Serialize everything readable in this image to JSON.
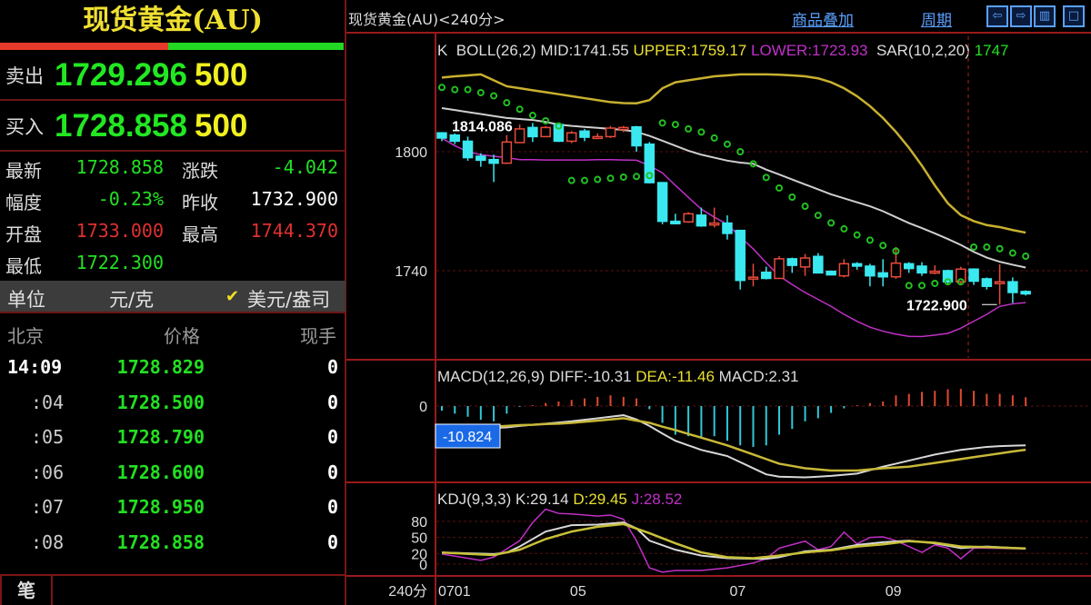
{
  "quote": {
    "title": "现货黄金(AU)",
    "sell": {
      "label": "卖出",
      "price": "1729.296",
      "volume": "500"
    },
    "buy": {
      "label": "买入",
      "price": "1728.858",
      "volume": "500"
    },
    "buy_sell_ratio": 0.49,
    "info": [
      {
        "label": "最新",
        "value": "1728.858",
        "color": "#22e022",
        "label2": "涨跌",
        "value2": "-4.042",
        "color2": "#22e022"
      },
      {
        "label": "幅度",
        "value": "-0.23%",
        "color": "#22e022",
        "label2": "昨收",
        "value2": "1732.900",
        "color2": "#ffffff"
      },
      {
        "label": "开盘",
        "value": "1733.000",
        "color": "#e03030",
        "label2": "最高",
        "value2": "1744.370",
        "color2": "#e03030"
      },
      {
        "label": "最低",
        "value": "1722.300",
        "color": "#22e022"
      }
    ],
    "units": {
      "label": "单位",
      "option1": "元/克",
      "option2": "美元/盎司",
      "selected": "美元/盎司"
    },
    "ticks_header": {
      "time": "北京",
      "price": "价格",
      "volume": "现手"
    },
    "ticks": [
      {
        "time": "14:09",
        "price": "1728.829",
        "volume": "0"
      },
      {
        "time": ":04",
        "price": "1728.500",
        "volume": "0"
      },
      {
        "time": ":05",
        "price": "1728.790",
        "volume": "0"
      },
      {
        "time": ":06",
        "price": "1728.600",
        "volume": "0"
      },
      {
        "time": ":07",
        "price": "1728.950",
        "volume": "0"
      },
      {
        "time": ":08",
        "price": "1728.858",
        "volume": "0"
      }
    ],
    "tab": "笔"
  },
  "chart_header": {
    "title": "现货黄金(AU)<240分>",
    "overlay_link": "商品叠加",
    "period_link": "周期",
    "buttons": [
      "⇦",
      "⇨",
      "▥",
      "□"
    ]
  },
  "chart_data": [
    {
      "type": "candlestick",
      "legend": {
        "k": "K",
        "boll": "BOLL(26,2)",
        "mid": "MID:1741.55",
        "upper": "UPPER:1759.17",
        "lower": "LOWER:1723.93",
        "sar": "SAR(10,2,20)",
        "sar_value": "1747"
      },
      "y_ticks": [
        {
          "label": "1800",
          "value": 1800
        },
        {
          "label": "1740",
          "value": 1740
        }
      ],
      "annotations": [
        {
          "label": "1814.086",
          "value": 1814.086,
          "index": 9
        },
        {
          "label": "1722.900",
          "value": 1722.9,
          "index": 43
        }
      ],
      "colors": {
        "up": "#e84a3a",
        "down": "#3ae8f0",
        "upper": "#c8b030",
        "mid": "#cfcfcf",
        "lower": "#c030c8",
        "sar": "#22c022"
      },
      "ohlc": [
        [
          1809.5,
          1809.9,
          1805.3,
          1806.9
        ],
        [
          1808.4,
          1809.2,
          1803.8,
          1805.3
        ],
        [
          1805.3,
          1807.6,
          1795.4,
          1797
        ],
        [
          1797.7,
          1799.2,
          1792.4,
          1795.7
        ],
        [
          1796,
          1798.5,
          1784.7,
          1794.2
        ],
        [
          1794.2,
          1808.4,
          1793.9,
          1804.9
        ],
        [
          1804.6,
          1813.7,
          1804.3,
          1811.5
        ],
        [
          1812.2,
          1814.5,
          1804.9,
          1807.6
        ],
        [
          1807.6,
          1813,
          1807.3,
          1812.2
        ],
        [
          1813.7,
          1814.1,
          1804.9,
          1805.3
        ],
        [
          1805.3,
          1810.4,
          1804.3,
          1809.5
        ],
        [
          1810.4,
          1811.5,
          1805.3,
          1807.3
        ],
        [
          1807.3,
          1809.2,
          1806.4,
          1807.6
        ],
        [
          1807.6,
          1813,
          1806.9,
          1811.9
        ],
        [
          1811.2,
          1813,
          1809.9,
          1812.2
        ],
        [
          1812.5,
          1813,
          1800,
          1803
        ],
        [
          1803.8,
          1804.9,
          1784,
          1784.4
        ],
        [
          1784.4,
          1784.7,
          1763.4,
          1764.9
        ],
        [
          1764.9,
          1768.7,
          1763.4,
          1763.7
        ],
        [
          1764.6,
          1769.5,
          1764.1,
          1768.7
        ],
        [
          1768,
          1771.8,
          1762.1,
          1762.6
        ],
        [
          1763.7,
          1771.8,
          1761.8,
          1764
        ],
        [
          1764,
          1767.9,
          1755.7,
          1758.8
        ],
        [
          1760.3,
          1760.6,
          1730.5,
          1735.1
        ],
        [
          1736.1,
          1743.5,
          1732.1,
          1736.7
        ],
        [
          1739.2,
          1742,
          1735.6,
          1736.1
        ],
        [
          1736.1,
          1747.3,
          1736.2,
          1746
        ],
        [
          1746,
          1746.6,
          1738.9,
          1742.7
        ],
        [
          1741.9,
          1748.4,
          1737.4,
          1746.4
        ],
        [
          1747.2,
          1748.9,
          1738.6,
          1738.9
        ],
        [
          1739.7,
          1740,
          1737.7,
          1737.9
        ],
        [
          1737.4,
          1745.8,
          1736.6,
          1743.5
        ],
        [
          1743.5,
          1744.3,
          1740.5,
          1742.3
        ],
        [
          1742.3,
          1743.5,
          1732.1,
          1737.4
        ],
        [
          1738.9,
          1745.8,
          1732.1,
          1736.9
        ],
        [
          1736.9,
          1751.9,
          1735.9,
          1743.8
        ],
        [
          1743.5,
          1744.3,
          1738.9,
          1741.1
        ],
        [
          1742.3,
          1744.3,
          1737.4,
          1738.9
        ],
        [
          1739,
          1742.7,
          1738.2,
          1739.7
        ],
        [
          1740,
          1740.5,
          1732.8,
          1734.4
        ],
        [
          1734.4,
          1742,
          1732.8,
          1740.8
        ],
        [
          1740.8,
          1741.2,
          1732.8,
          1734.7
        ],
        [
          1735.9,
          1736.6,
          1730.5,
          1732.1
        ],
        [
          1734,
          1743.2,
          1722.9,
          1734.4
        ],
        [
          1734.4,
          1736.6,
          1723.7,
          1729
        ],
        [
          1729.5,
          1730.1,
          1727.5,
          1728.3
        ]
      ],
      "upper": [
        1837.4,
        1838,
        1838.5,
        1839,
        1836,
        1833,
        1832,
        1831,
        1830,
        1829,
        1828,
        1827,
        1826,
        1825,
        1824.5,
        1824.4,
        1826,
        1832,
        1835,
        1836,
        1837,
        1838,
        1838.5,
        1839,
        1839,
        1839,
        1838.8,
        1838.5,
        1838,
        1837,
        1835,
        1832,
        1828,
        1823,
        1817,
        1810,
        1802,
        1793,
        1783,
        1774,
        1768,
        1765,
        1763,
        1762,
        1760.5,
        1759.2
      ],
      "mid": [
        1822,
        1821,
        1820,
        1819,
        1818,
        1817,
        1816.5,
        1816,
        1815,
        1813.7,
        1813,
        1812.5,
        1812,
        1811.5,
        1811,
        1810,
        1808,
        1805.5,
        1803,
        1800.5,
        1798.5,
        1797,
        1795.5,
        1794.5,
        1793.9,
        1791,
        1788.5,
        1786,
        1783.5,
        1781,
        1778.5,
        1776.5,
        1774.5,
        1772.5,
        1770,
        1767,
        1764,
        1761.5,
        1758.8,
        1756,
        1753,
        1749.5,
        1746.6,
        1744.5,
        1743,
        1741.6
      ],
      "lower": [
        1806.9,
        1803,
        1800,
        1798.5,
        1797.7,
        1797,
        1796,
        1796,
        1795.8,
        1795.8,
        1795.8,
        1795.8,
        1796,
        1796,
        1795.8,
        1795.7,
        1793,
        1789.3,
        1783,
        1777,
        1771,
        1767,
        1763.4,
        1757,
        1751,
        1744,
        1737.4,
        1733,
        1729,
        1725.5,
        1722,
        1718,
        1714.5,
        1711.5,
        1709.5,
        1708,
        1706.9,
        1706.8,
        1707.5,
        1708.4,
        1711,
        1714.5,
        1718,
        1722,
        1723.3,
        1723.9
      ],
      "sar": [
        1832.4,
        1831.3,
        1831.3,
        1829.8,
        1828.2,
        1824.7,
        1821.4,
        1818.3,
        1815.6,
        1813,
        1785.5,
        1785.5,
        1786,
        1786.6,
        1787.2,
        1787.5,
        1788,
        1814.5,
        1813.7,
        1811.5,
        1809.9,
        1806.9,
        1803.8,
        1800,
        1793.9,
        1787,
        1781.7,
        1777.1,
        1772.5,
        1767.9,
        1764.1,
        1761.1,
        1758,
        1755.4,
        1752.7,
        1749.9,
        1732.5,
        1732.5,
        1733.6,
        1734.4,
        1734.4,
        1751.9,
        1751.9,
        1751.1,
        1748.9,
        1747.3
      ],
      "x_ticks": [
        {
          "label": "0701",
          "index": 0
        },
        {
          "label": "05",
          "index": 10.5
        },
        {
          "label": "07",
          "index": 22.8
        },
        {
          "label": "09",
          "index": 34.8
        }
      ],
      "period_label": "240分"
    },
    {
      "type": "macd",
      "legend": {
        "name": "MACD(12,26,9)",
        "diff": "DIFF:-10.31",
        "dea": "DEA:-11.46",
        "macd": "MACD:2.31"
      },
      "y_ticks": [
        {
          "label": "0",
          "value": 0
        }
      ],
      "cursor_value": "-10.824",
      "colors": {
        "diff": "#d8d8d8",
        "dea": "#c8b838",
        "pos": "#e04a30",
        "neg": "#30c8d8"
      },
      "hist": [
        -1.2,
        -2,
        -2.8,
        -3.6,
        -4,
        -2,
        -0.2,
        0.2,
        0.8,
        1.2,
        1.6,
        2,
        2.4,
        2.8,
        2.4,
        2,
        -0.8,
        -4.4,
        -7.5,
        -7.9,
        -8.3,
        -7.9,
        -9.1,
        -10.3,
        -10.7,
        -10.3,
        -7.5,
        -6,
        -4,
        -3.2,
        -1.8,
        -0.6,
        0.2,
        0.8,
        1.2,
        2.8,
        3.2,
        3.7,
        4,
        4.4,
        4.5,
        4,
        3.2,
        3.2,
        2.8,
        2.31
      ],
      "diff": [
        -6.3,
        -6.1,
        -5.9,
        -5.8,
        -5.7,
        -5.6,
        -5.2,
        -4.9,
        -4.6,
        -4.3,
        -4,
        -3.6,
        -3.2,
        -2.8,
        -2.4,
        -3.5,
        -5.2,
        -7.2,
        -9.1,
        -10.3,
        -11.5,
        -12.3,
        -13.1,
        -14.7,
        -16.3,
        -17.9,
        -18.5,
        -18.6,
        -18.7,
        -18.5,
        -18.3,
        -18,
        -17.7,
        -16.8,
        -15.9,
        -15.1,
        -14.3,
        -13.5,
        -12.7,
        -12.1,
        -11.5,
        -11.1,
        -10.7,
        -10.5,
        -10.4,
        -10.31
      ],
      "dea": [
        -6,
        -5.8,
        -5.7,
        -5.5,
        -5.4,
        -5.2,
        -5,
        -4.9,
        -4.7,
        -4.6,
        -4.4,
        -4.1,
        -3.8,
        -3.5,
        -3.2,
        -3.8,
        -4.4,
        -5.4,
        -6.3,
        -7.3,
        -8.3,
        -9.3,
        -10.3,
        -11.5,
        -12.7,
        -13.9,
        -15.1,
        -15.7,
        -16.3,
        -16.6,
        -16.9,
        -16.9,
        -16.9,
        -16.6,
        -16.3,
        -16.1,
        -15.9,
        -15.4,
        -14.9,
        -14.4,
        -13.9,
        -13.4,
        -12.9,
        -12.4,
        -11.9,
        -11.46
      ]
    },
    {
      "type": "kdj",
      "legend": {
        "name": "KDJ(9,3,3)",
        "k": "K:29.14",
        "d": "D:29.45",
        "j": "J:28.52"
      },
      "y_ticks": [
        {
          "label": "80",
          "value": 80
        },
        {
          "label": "50",
          "value": 50
        },
        {
          "label": "20",
          "value": 20
        },
        {
          "label": "0",
          "value": 0
        }
      ],
      "colors": {
        "k": "#d8d8d8",
        "d": "#c8c038",
        "j": "#c030c8"
      },
      "k": [
        [
          0,
          21.6
        ],
        [
          4,
          19
        ],
        [
          5,
          21.6
        ],
        [
          6,
          33
        ],
        [
          8,
          61
        ],
        [
          10,
          73
        ],
        [
          12,
          74
        ],
        [
          14,
          78
        ],
        [
          15,
          67
        ],
        [
          16,
          44
        ],
        [
          18,
          27
        ],
        [
          20,
          16
        ],
        [
          22,
          11
        ],
        [
          24,
          10
        ],
        [
          25,
          10
        ],
        [
          26,
          13
        ],
        [
          28,
          24
        ],
        [
          30,
          27
        ],
        [
          32,
          36
        ],
        [
          34,
          41
        ],
        [
          36,
          44
        ],
        [
          38,
          39
        ],
        [
          40,
          30
        ],
        [
          42,
          33
        ],
        [
          45,
          29.14
        ]
      ],
      "d": [
        [
          0,
          21.6
        ],
        [
          4,
          17
        ],
        [
          6,
          27
        ],
        [
          8,
          47
        ],
        [
          10,
          61
        ],
        [
          12,
          70
        ],
        [
          14,
          75
        ],
        [
          16,
          58
        ],
        [
          18,
          39
        ],
        [
          20,
          22
        ],
        [
          22,
          13
        ],
        [
          24,
          11
        ],
        [
          26,
          16
        ],
        [
          28,
          22
        ],
        [
          30,
          26
        ],
        [
          32,
          33
        ],
        [
          34,
          37
        ],
        [
          36,
          43
        ],
        [
          38,
          40
        ],
        [
          40,
          33
        ],
        [
          42,
          32
        ],
        [
          45,
          29.45
        ]
      ],
      "j": [
        [
          0,
          19
        ],
        [
          3,
          7
        ],
        [
          4,
          13
        ],
        [
          6,
          44
        ],
        [
          7,
          78
        ],
        [
          8,
          103
        ],
        [
          9,
          95
        ],
        [
          10,
          94
        ],
        [
          12,
          90
        ],
        [
          13,
          92
        ],
        [
          14,
          84
        ],
        [
          15,
          44
        ],
        [
          16,
          -7
        ],
        [
          17,
          -15
        ],
        [
          18,
          -12
        ],
        [
          20,
          -12
        ],
        [
          22,
          -7
        ],
        [
          24,
          2
        ],
        [
          25,
          10
        ],
        [
          26,
          30
        ],
        [
          28,
          43
        ],
        [
          29,
          27
        ],
        [
          30,
          33
        ],
        [
          31,
          60
        ],
        [
          32,
          38
        ],
        [
          33,
          50
        ],
        [
          34,
          51
        ],
        [
          35,
          44
        ],
        [
          37,
          22
        ],
        [
          38,
          36
        ],
        [
          39,
          30
        ],
        [
          40,
          10
        ],
        [
          41,
          30
        ],
        [
          42,
          30
        ],
        [
          45,
          28.52
        ]
      ]
    }
  ]
}
